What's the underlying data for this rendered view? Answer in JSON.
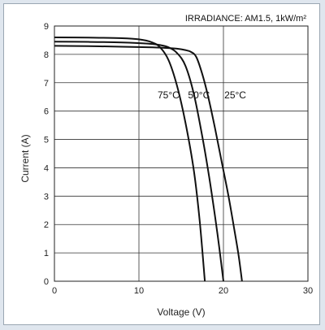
{
  "chart_data": {
    "type": "line",
    "title": "",
    "annotation": "IRRADIANCE: AM1.5, 1kW/m²",
    "xlabel": "Voltage (V)",
    "ylabel": "Current (A)",
    "xlim": [
      0,
      30
    ],
    "ylim": [
      0,
      9
    ],
    "xticks": [
      0,
      10,
      20,
      30
    ],
    "yticks": [
      0,
      1,
      2,
      3,
      4,
      5,
      6,
      7,
      8,
      9
    ],
    "grid": true,
    "series": [
      {
        "name": "25°C",
        "x": [
          0,
          4,
          8,
          11,
          13,
          14.5,
          15.5,
          16.2,
          16.8,
          17.5,
          18.2,
          19,
          19.8,
          20.6,
          21.3,
          21.8,
          22.2
        ],
        "y": [
          8.3,
          8.29,
          8.27,
          8.25,
          8.23,
          8.2,
          8.15,
          8.08,
          7.9,
          7.3,
          6.5,
          5.4,
          4.2,
          3.0,
          1.8,
          0.9,
          0
        ]
      },
      {
        "name": "50°C",
        "x": [
          0,
          4,
          8,
          11,
          12.5,
          13.5,
          14.5,
          15.5,
          16.5,
          17.5,
          18.3,
          19.0,
          19.5,
          20.0
        ],
        "y": [
          8.45,
          8.44,
          8.42,
          8.38,
          8.33,
          8.25,
          8.05,
          7.6,
          6.6,
          5.1,
          3.7,
          2.3,
          1.2,
          0
        ]
      },
      {
        "name": "75°C",
        "x": [
          0,
          4,
          8,
          10,
          11.5,
          12.5,
          13.5,
          14.5,
          15.5,
          16.5,
          17.2,
          17.8
        ],
        "y": [
          8.6,
          8.59,
          8.57,
          8.53,
          8.43,
          8.25,
          7.8,
          6.9,
          5.6,
          3.9,
          2.1,
          0
        ]
      }
    ],
    "series_label_positions": [
      {
        "x": 21.4,
        "y": 6.45
      },
      {
        "x": 17.1,
        "y": 6.45
      },
      {
        "x": 13.5,
        "y": 6.45
      }
    ]
  }
}
